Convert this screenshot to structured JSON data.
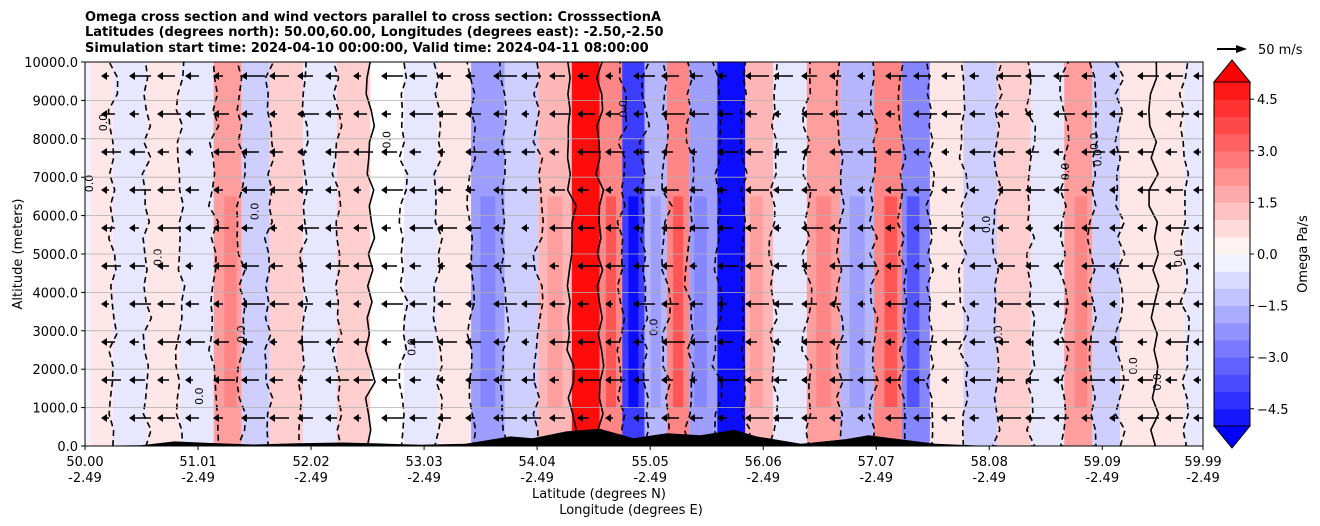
{
  "chart_data": {
    "type": "contour",
    "title_lines": [
      "Omega cross section and wind vectors parallel to cross section: CrosssectionA",
      "Latitudes (degrees north): 50.00,60.00, Longitudes (degrees east): -2.50,-2.50",
      "Simulation start time: 2024-04-10 00:00:00, Valid time: 2024-04-11 08:00:00"
    ],
    "ylabel": "Altitude (meters)",
    "xlabel_lines": [
      "Latitude (degrees N)",
      "Longitude (degrees E)"
    ],
    "ylim": [
      0,
      10000
    ],
    "y_ticks": [
      {
        "value": 0,
        "label": "0.0"
      },
      {
        "value": 1000,
        "label": "1000.0"
      },
      {
        "value": 2000,
        "label": "2000.0"
      },
      {
        "value": 3000,
        "label": "3000.0"
      },
      {
        "value": 4000,
        "label": "4000.0"
      },
      {
        "value": 5000,
        "label": "5000.0"
      },
      {
        "value": 6000,
        "label": "6000.0"
      },
      {
        "value": 7000,
        "label": "7000.0"
      },
      {
        "value": 8000,
        "label": "8000.0"
      },
      {
        "value": 9000,
        "label": "9000.0"
      },
      {
        "value": 10000,
        "label": "10000.0"
      }
    ],
    "xlim": [
      50.0,
      59.99
    ],
    "x_ticks": [
      {
        "value": 50.0,
        "lat": "50.00",
        "lon": "-2.49"
      },
      {
        "value": 51.01,
        "lat": "51.01",
        "lon": "-2.49"
      },
      {
        "value": 52.02,
        "lat": "52.02",
        "lon": "-2.49"
      },
      {
        "value": 53.03,
        "lat": "53.03",
        "lon": "-2.49"
      },
      {
        "value": 54.04,
        "lat": "54.04",
        "lon": "-2.49"
      },
      {
        "value": 55.05,
        "lat": "55.05",
        "lon": "-2.49"
      },
      {
        "value": 56.06,
        "lat": "56.06",
        "lon": "-2.49"
      },
      {
        "value": 57.07,
        "lat": "57.07",
        "lon": "-2.49"
      },
      {
        "value": 58.08,
        "lat": "58.08",
        "lon": "-2.49"
      },
      {
        "value": 59.09,
        "lat": "59.09",
        "lon": "-2.49"
      },
      {
        "value": 59.99,
        "lat": "59.99",
        "lon": "-2.49"
      }
    ],
    "grid": "horizontal",
    "colorbar": {
      "label": "Omega Pa/s",
      "range": [
        -5.25,
        5.25
      ],
      "step": 0.5,
      "ticks": [
        {
          "value": 4.5,
          "label": "4.5"
        },
        {
          "value": 3.0,
          "label": "3.0"
        },
        {
          "value": 1.5,
          "label": "1.5"
        },
        {
          "value": 0.0,
          "label": "0.0"
        },
        {
          "value": -1.5,
          "label": "−1.5"
        },
        {
          "value": -3.0,
          "label": "−3.0"
        },
        {
          "value": -4.5,
          "label": "−4.5"
        }
      ],
      "colormap": "bwr"
    },
    "vector_key": {
      "label": "50 m/s",
      "speed": 50
    },
    "contour_label": "0.0",
    "omega_bands": [
      {
        "lat": 50.1,
        "value": 0.6
      },
      {
        "lat": 50.4,
        "value": -0.5
      },
      {
        "lat": 50.7,
        "value": 0.4
      },
      {
        "lat": 51.0,
        "value": -0.3
      },
      {
        "lat": 51.3,
        "value": 1.8
      },
      {
        "lat": 51.5,
        "value": -1.0
      },
      {
        "lat": 51.8,
        "value": 1.0
      },
      {
        "lat": 52.1,
        "value": -0.4
      },
      {
        "lat": 52.4,
        "value": 0.8
      },
      {
        "lat": 52.7,
        "value": 0.2
      },
      {
        "lat": 53.0,
        "value": -0.4
      },
      {
        "lat": 53.3,
        "value": 0.5
      },
      {
        "lat": 53.6,
        "value": -2.0
      },
      {
        "lat": 53.9,
        "value": -0.8
      },
      {
        "lat": 54.2,
        "value": 1.5
      },
      {
        "lat": 54.5,
        "value": 5.0
      },
      {
        "lat": 54.7,
        "value": 2.5
      },
      {
        "lat": 54.9,
        "value": -4.0
      },
      {
        "lat": 55.1,
        "value": -1.5
      },
      {
        "lat": 55.3,
        "value": 2.5
      },
      {
        "lat": 55.5,
        "value": -2.0
      },
      {
        "lat": 55.8,
        "value": -5.0
      },
      {
        "lat": 56.0,
        "value": 1.5
      },
      {
        "lat": 56.3,
        "value": -0.5
      },
      {
        "lat": 56.6,
        "value": 2.0
      },
      {
        "lat": 56.9,
        "value": -1.5
      },
      {
        "lat": 57.2,
        "value": 2.5
      },
      {
        "lat": 57.4,
        "value": -2.5
      },
      {
        "lat": 57.7,
        "value": 0.5
      },
      {
        "lat": 58.0,
        "value": -0.8
      },
      {
        "lat": 58.3,
        "value": 1.0
      },
      {
        "lat": 58.6,
        "value": -0.4
      },
      {
        "lat": 58.9,
        "value": 1.8
      },
      {
        "lat": 59.1,
        "value": -1.2
      },
      {
        "lat": 59.4,
        "value": 0.6
      },
      {
        "lat": 59.7,
        "value": 0.3
      },
      {
        "lat": 59.95,
        "value": -0.5
      }
    ],
    "terrain": [
      {
        "lat": 50.0,
        "alt": 0
      },
      {
        "lat": 50.5,
        "alt": 20
      },
      {
        "lat": 50.8,
        "alt": 120
      },
      {
        "lat": 51.1,
        "alt": 80
      },
      {
        "lat": 51.5,
        "alt": 40
      },
      {
        "lat": 51.9,
        "alt": 70
      },
      {
        "lat": 52.3,
        "alt": 90
      },
      {
        "lat": 52.7,
        "alt": 60
      },
      {
        "lat": 53.0,
        "alt": 30
      },
      {
        "lat": 53.4,
        "alt": 60
      },
      {
        "lat": 53.8,
        "alt": 250
      },
      {
        "lat": 54.0,
        "alt": 200
      },
      {
        "lat": 54.3,
        "alt": 380
      },
      {
        "lat": 54.6,
        "alt": 450
      },
      {
        "lat": 54.9,
        "alt": 200
      },
      {
        "lat": 55.2,
        "alt": 330
      },
      {
        "lat": 55.5,
        "alt": 280
      },
      {
        "lat": 55.8,
        "alt": 420
      },
      {
        "lat": 56.0,
        "alt": 250
      },
      {
        "lat": 56.4,
        "alt": 60
      },
      {
        "lat": 56.8,
        "alt": 180
      },
      {
        "lat": 57.0,
        "alt": 280
      },
      {
        "lat": 57.3,
        "alt": 170
      },
      {
        "lat": 57.6,
        "alt": 60
      },
      {
        "lat": 58.0,
        "alt": 10
      },
      {
        "lat": 59.99,
        "alt": 0
      }
    ]
  }
}
